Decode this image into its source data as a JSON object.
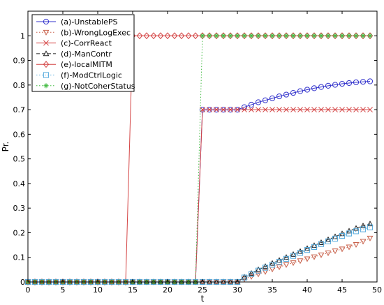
{
  "chart_data": {
    "type": "line",
    "title": "",
    "xlabel": "t",
    "ylabel": "Pr.",
    "xlim": [
      0,
      50
    ],
    "ylim": [
      0,
      1.1
    ],
    "xticks": [
      "0",
      "5",
      "10",
      "15",
      "20",
      "25",
      "30",
      "35",
      "40",
      "45",
      "50"
    ],
    "yticks": [
      "0",
      "0.1",
      "0.2",
      "0.3",
      "0.4",
      "0.5",
      "0.6",
      "0.7",
      "0.8",
      "0.9",
      "1"
    ],
    "grid": false,
    "legend_position": "top-left",
    "x": [
      0,
      1,
      2,
      3,
      4,
      5,
      6,
      7,
      8,
      9,
      10,
      11,
      12,
      13,
      14,
      15,
      16,
      17,
      18,
      19,
      20,
      21,
      22,
      23,
      24,
      25,
      26,
      27,
      28,
      29,
      30,
      31,
      32,
      33,
      34,
      35,
      36,
      37,
      38,
      39,
      40,
      41,
      42,
      43,
      44,
      45,
      46,
      47,
      48,
      49
    ],
    "series": [
      {
        "name": "(a)-UnstablePS",
        "color": "#3333cc",
        "marker": "circle",
        "dash": "solid",
        "values": [
          0,
          0,
          0,
          0,
          0,
          0,
          0,
          0,
          0,
          0,
          0,
          0,
          0,
          0,
          0,
          0,
          0,
          0,
          0,
          0,
          0,
          0,
          0,
          0,
          0,
          0.7,
          0.7,
          0.7,
          0.7,
          0.7,
          0.7,
          0.71,
          0.72,
          0.73,
          0.738,
          0.746,
          0.754,
          0.761,
          0.768,
          0.775,
          0.781,
          0.787,
          0.792,
          0.797,
          0.801,
          0.805,
          0.808,
          0.811,
          0.813,
          0.815
        ]
      },
      {
        "name": "(b)-WrongLogExec",
        "color": "#c8604a",
        "marker": "triangle-down",
        "dash": "dotted",
        "values": [
          0,
          0,
          0,
          0,
          0,
          0,
          0,
          0,
          0,
          0,
          0,
          0,
          0,
          0,
          0,
          0,
          0,
          0,
          0,
          0,
          0,
          0,
          0,
          0,
          0,
          0,
          0,
          0,
          0,
          0,
          0,
          0.012,
          0.022,
          0.032,
          0.042,
          0.052,
          0.061,
          0.07,
          0.078,
          0.086,
          0.094,
          0.102,
          0.11,
          0.118,
          0.126,
          0.134,
          0.142,
          0.152,
          0.165,
          0.178
        ]
      },
      {
        "name": "(c)-CorrReact",
        "color": "#d44444",
        "marker": "x",
        "dash": "solid",
        "values": [
          0,
          0,
          0,
          0,
          0,
          0,
          0,
          0,
          0,
          0,
          0,
          0,
          0,
          0,
          0,
          0,
          0,
          0,
          0,
          0,
          0,
          0,
          0,
          0,
          0,
          0.7,
          0.7,
          0.7,
          0.7,
          0.7,
          0.7,
          0.7,
          0.7,
          0.7,
          0.7,
          0.7,
          0.7,
          0.7,
          0.7,
          0.7,
          0.7,
          0.7,
          0.7,
          0.7,
          0.7,
          0.7,
          0.7,
          0.7,
          0.7,
          0.7
        ]
      },
      {
        "name": "(d)-ManContr",
        "color": "#222222",
        "marker": "triangle-up",
        "dash": "dashed",
        "values": [
          0,
          0,
          0,
          0,
          0,
          0,
          0,
          0,
          0,
          0,
          0,
          0,
          0,
          0,
          0,
          0,
          0,
          0,
          0,
          0,
          0,
          0,
          0,
          0,
          0,
          0,
          0,
          0,
          0,
          0,
          0,
          0.02,
          0.035,
          0.05,
          0.063,
          0.076,
          0.088,
          0.1,
          0.112,
          0.124,
          0.136,
          0.148,
          0.16,
          0.172,
          0.184,
          0.196,
          0.207,
          0.218,
          0.228,
          0.236
        ]
      },
      {
        "name": "(e)-localMITM",
        "color": "#d44444",
        "marker": "diamond",
        "dash": "solid",
        "values": [
          0,
          0,
          0,
          0,
          0,
          0,
          0,
          0,
          0,
          0,
          0,
          0,
          0,
          0,
          0,
          1,
          1,
          1,
          1,
          1,
          1,
          1,
          1,
          1,
          1,
          1,
          1,
          1,
          1,
          1,
          1,
          1,
          1,
          1,
          1,
          1,
          1,
          1,
          1,
          1,
          1,
          1,
          1,
          1,
          1,
          1,
          1,
          1,
          1,
          1
        ]
      },
      {
        "name": "(f)-ModCtrlLogic",
        "color": "#55aadd",
        "marker": "square",
        "dash": "dotted",
        "values": [
          0,
          0,
          0,
          0,
          0,
          0,
          0,
          0,
          0,
          0,
          0,
          0,
          0,
          0,
          0,
          0,
          0,
          0,
          0,
          0,
          0,
          0,
          0,
          0,
          0,
          0,
          0,
          0,
          0,
          0,
          0,
          0.018,
          0.032,
          0.046,
          0.058,
          0.07,
          0.082,
          0.094,
          0.106,
          0.118,
          0.13,
          0.142,
          0.154,
          0.165,
          0.176,
          0.187,
          0.197,
          0.206,
          0.214,
          0.222
        ]
      },
      {
        "name": "(g)-NotCoherStatus",
        "color": "#44bb44",
        "marker": "star",
        "dash": "dotted",
        "values": [
          0,
          0,
          0,
          0,
          0,
          0,
          0,
          0,
          0,
          0,
          0,
          0,
          0,
          0,
          0,
          0,
          0,
          0,
          0,
          0,
          0,
          0,
          0,
          0,
          0,
          1,
          1,
          1,
          1,
          1,
          1,
          1,
          1,
          1,
          1,
          1,
          1,
          1,
          1,
          1,
          1,
          1,
          1,
          1,
          1,
          1,
          1,
          1,
          1,
          1
        ]
      }
    ]
  }
}
